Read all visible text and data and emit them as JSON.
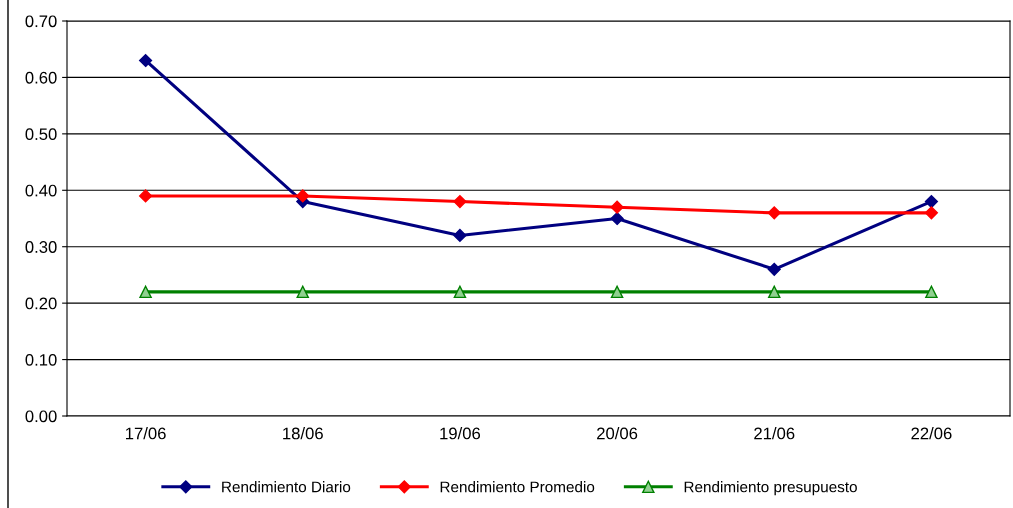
{
  "chart_data": {
    "type": "line",
    "categories": [
      "17/06",
      "18/06",
      "19/06",
      "20/06",
      "21/06",
      "22/06"
    ],
    "series": [
      {
        "name": "Rendimiento Diario",
        "color": "#000080",
        "values": [
          0.63,
          0.38,
          0.32,
          0.35,
          0.26,
          0.38
        ],
        "marker": "diamond"
      },
      {
        "name": "Rendimiento Promedio",
        "color": "#ff0000",
        "values": [
          0.39,
          0.39,
          0.38,
          0.37,
          0.36,
          0.36
        ],
        "marker": "diamond"
      },
      {
        "name": "Rendimiento presupuesto",
        "color": "#008000",
        "values": [
          0.22,
          0.22,
          0.22,
          0.22,
          0.22,
          0.22
        ],
        "marker": "triangle"
      }
    ],
    "ylim": [
      0,
      0.7
    ],
    "yticks": [
      {
        "value": 0,
        "label": "0.00"
      },
      {
        "value": 0.1,
        "label": "0.10"
      },
      {
        "value": 0.2,
        "label": "0.20"
      },
      {
        "value": 0.3,
        "label": "0.30"
      },
      {
        "value": 0.4,
        "label": "0.40"
      },
      {
        "value": 0.5,
        "label": "0.50"
      },
      {
        "value": 0.6,
        "label": "0.60"
      },
      {
        "value": 0.7,
        "label": "0.70"
      }
    ],
    "grid": "y",
    "legend": "bottom",
    "line_style": "solid"
  }
}
